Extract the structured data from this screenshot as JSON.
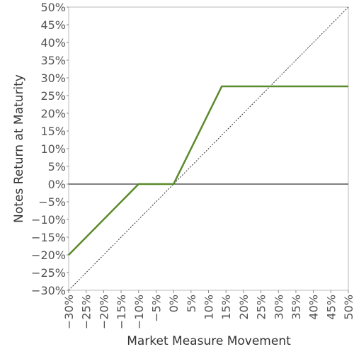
{
  "chart_data": {
    "type": "line",
    "xlabel": "Market Measure Movement",
    "ylabel": "Notes Return at Maturity",
    "xlim": [
      -30,
      50
    ],
    "ylim": [
      -30,
      50
    ],
    "xticks": [
      {
        "value": -30,
        "label": "−30%"
      },
      {
        "value": -25,
        "label": "−25%"
      },
      {
        "value": -20,
        "label": "−20%"
      },
      {
        "value": -15,
        "label": "−15%"
      },
      {
        "value": -10,
        "label": "−10%"
      },
      {
        "value": -5,
        "label": "−5%"
      },
      {
        "value": 0,
        "label": "0%"
      },
      {
        "value": 5,
        "label": "5%"
      },
      {
        "value": 10,
        "label": "10%"
      },
      {
        "value": 15,
        "label": "15%"
      },
      {
        "value": 20,
        "label": "20%"
      },
      {
        "value": 25,
        "label": "25%"
      },
      {
        "value": 30,
        "label": "30%"
      },
      {
        "value": 35,
        "label": "35%"
      },
      {
        "value": 40,
        "label": "40%"
      },
      {
        "value": 45,
        "label": "45%"
      },
      {
        "value": 50,
        "label": "50%"
      }
    ],
    "yticks": [
      {
        "value": 50,
        "label": "50%"
      },
      {
        "value": 45,
        "label": "45%"
      },
      {
        "value": 40,
        "label": "40%"
      },
      {
        "value": 35,
        "label": "35%"
      },
      {
        "value": 30,
        "label": "30%"
      },
      {
        "value": 25,
        "label": "25%"
      },
      {
        "value": 20,
        "label": "20%"
      },
      {
        "value": 15,
        "label": "15%"
      },
      {
        "value": 10,
        "label": "10%"
      },
      {
        "value": 5,
        "label": "5%"
      },
      {
        "value": 0,
        "label": "0%"
      },
      {
        "value": -5,
        "label": "−5%"
      },
      {
        "value": -10,
        "label": "−10%"
      },
      {
        "value": -15,
        "label": "−15%"
      },
      {
        "value": -20,
        "label": "−20%"
      },
      {
        "value": -25,
        "label": "−25%"
      },
      {
        "value": -30,
        "label": "−30%"
      }
    ],
    "series": [
      {
        "color": "#5a8a2a",
        "x": [
          -30,
          -10,
          0,
          13.8,
          50
        ],
        "values": [
          -20,
          0,
          0,
          27.6,
          27.6
        ]
      },
      {
        "color": "#333333",
        "dashed": true,
        "x": [
          -30,
          50
        ],
        "values": [
          -30,
          50
        ]
      }
    ]
  }
}
